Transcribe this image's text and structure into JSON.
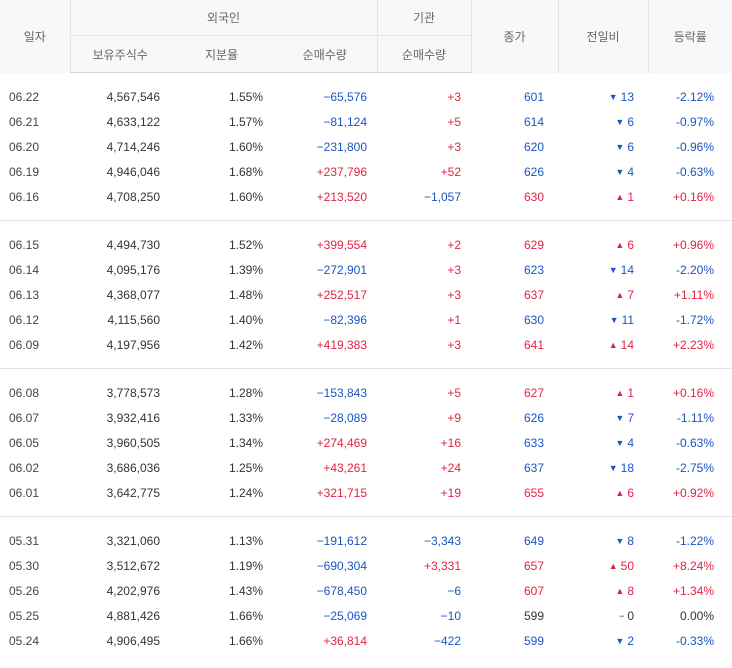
{
  "header": {
    "date": "일자",
    "foreign": "외국인",
    "institution": "기관",
    "close": "종가",
    "change": "전일비",
    "rate": "등락률",
    "holdings": "보유주식수",
    "share": "지분율",
    "foreign_net": "순매수량",
    "inst_net": "순매수량"
  },
  "groups": [
    [
      {
        "date": "06.22",
        "holdings": "4,567,546",
        "share": "1.55%",
        "foreign_net": "−65,576",
        "inst_net": "+3",
        "close": "601",
        "change": "13",
        "dir": "down",
        "rate": "-2.12%"
      },
      {
        "date": "06.21",
        "holdings": "4,633,122",
        "share": "1.57%",
        "foreign_net": "−81,124",
        "inst_net": "+5",
        "close": "614",
        "change": "6",
        "dir": "down",
        "rate": "-0.97%"
      },
      {
        "date": "06.20",
        "holdings": "4,714,246",
        "share": "1.60%",
        "foreign_net": "−231,800",
        "inst_net": "+3",
        "close": "620",
        "change": "6",
        "dir": "down",
        "rate": "-0.96%"
      },
      {
        "date": "06.19",
        "holdings": "4,946,046",
        "share": "1.68%",
        "foreign_net": "+237,796",
        "inst_net": "+52",
        "close": "626",
        "change": "4",
        "dir": "down",
        "rate": "-0.63%"
      },
      {
        "date": "06.16",
        "holdings": "4,708,250",
        "share": "1.60%",
        "foreign_net": "+213,520",
        "inst_net": "−1,057",
        "close": "630",
        "change": "1",
        "dir": "up",
        "rate": "+0.16%"
      }
    ],
    [
      {
        "date": "06.15",
        "holdings": "4,494,730",
        "share": "1.52%",
        "foreign_net": "+399,554",
        "inst_net": "+2",
        "close": "629",
        "change": "6",
        "dir": "up",
        "rate": "+0.96%"
      },
      {
        "date": "06.14",
        "holdings": "4,095,176",
        "share": "1.39%",
        "foreign_net": "−272,901",
        "inst_net": "+3",
        "close": "623",
        "change": "14",
        "dir": "down",
        "rate": "-2.20%"
      },
      {
        "date": "06.13",
        "holdings": "4,368,077",
        "share": "1.48%",
        "foreign_net": "+252,517",
        "inst_net": "+3",
        "close": "637",
        "change": "7",
        "dir": "up",
        "rate": "+1.11%"
      },
      {
        "date": "06.12",
        "holdings": "4,115,560",
        "share": "1.40%",
        "foreign_net": "−82,396",
        "inst_net": "+1",
        "close": "630",
        "change": "11",
        "dir": "down",
        "rate": "-1.72%"
      },
      {
        "date": "06.09",
        "holdings": "4,197,956",
        "share": "1.42%",
        "foreign_net": "+419,383",
        "inst_net": "+3",
        "close": "641",
        "change": "14",
        "dir": "up",
        "rate": "+2.23%"
      }
    ],
    [
      {
        "date": "06.08",
        "holdings": "3,778,573",
        "share": "1.28%",
        "foreign_net": "−153,843",
        "inst_net": "+5",
        "close": "627",
        "change": "1",
        "dir": "up",
        "rate": "+0.16%"
      },
      {
        "date": "06.07",
        "holdings": "3,932,416",
        "share": "1.33%",
        "foreign_net": "−28,089",
        "inst_net": "+9",
        "close": "626",
        "change": "7",
        "dir": "down",
        "rate": "-1.11%"
      },
      {
        "date": "06.05",
        "holdings": "3,960,505",
        "share": "1.34%",
        "foreign_net": "+274,469",
        "inst_net": "+16",
        "close": "633",
        "change": "4",
        "dir": "down",
        "rate": "-0.63%"
      },
      {
        "date": "06.02",
        "holdings": "3,686,036",
        "share": "1.25%",
        "foreign_net": "+43,261",
        "inst_net": "+24",
        "close": "637",
        "change": "18",
        "dir": "down",
        "rate": "-2.75%"
      },
      {
        "date": "06.01",
        "holdings": "3,642,775",
        "share": "1.24%",
        "foreign_net": "+321,715",
        "inst_net": "+19",
        "close": "655",
        "change": "6",
        "dir": "up",
        "rate": "+0.92%"
      }
    ],
    [
      {
        "date": "05.31",
        "holdings": "3,321,060",
        "share": "1.13%",
        "foreign_net": "−191,612",
        "inst_net": "−3,343",
        "close": "649",
        "change": "8",
        "dir": "down",
        "rate": "-1.22%"
      },
      {
        "date": "05.30",
        "holdings": "3,512,672",
        "share": "1.19%",
        "foreign_net": "−690,304",
        "inst_net": "+3,331",
        "close": "657",
        "change": "50",
        "dir": "up",
        "rate": "+8.24%"
      },
      {
        "date": "05.26",
        "holdings": "4,202,976",
        "share": "1.43%",
        "foreign_net": "−678,450",
        "inst_net": "−6",
        "close": "607",
        "change": "8",
        "dir": "up",
        "rate": "+1.34%"
      },
      {
        "date": "05.25",
        "holdings": "4,881,426",
        "share": "1.66%",
        "foreign_net": "−25,069",
        "inst_net": "−10",
        "close": "599",
        "change": "0",
        "dir": "flat",
        "rate": "0.00%"
      },
      {
        "date": "05.24",
        "holdings": "4,906,495",
        "share": "1.66%",
        "foreign_net": "+36,814",
        "inst_net": "−422",
        "close": "599",
        "change": "2",
        "dir": "down",
        "rate": "-0.33%"
      }
    ]
  ],
  "colors": {
    "up": "#e12343",
    "down": "#1b55c4",
    "flat": "#333333"
  }
}
